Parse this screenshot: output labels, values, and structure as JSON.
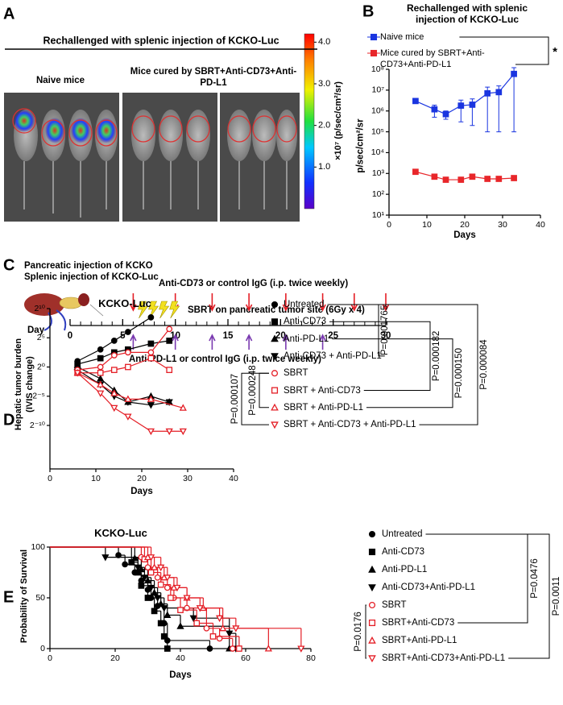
{
  "panel_labels": [
    "A",
    "B",
    "C",
    "D",
    "E"
  ],
  "panel_a": {
    "title": "Rechallenged with splenic injection of KCKO-Luc",
    "naive_label": "Naive mice",
    "cured_label": "Mice cured by SBRT+Anti-CD73+Anti-PD-L1",
    "colorbar": {
      "lim": [
        0,
        4.2
      ],
      "ticks": [
        {
          "value": 4,
          "label": "4.0"
        },
        {
          "value": 3,
          "label": "3.0"
        },
        {
          "value": 2,
          "label": "2.0"
        },
        {
          "value": 1,
          "label": "1.0"
        }
      ],
      "label": "×10⁷ (p/sec/cm²/sr)"
    }
  },
  "panel_c": {
    "lines": [
      "Pancreatic injection of KCKO",
      "Splenic injection of KCKO-Luc"
    ],
    "anti_cd73_label": "Anti-CD73 or control IgG (i.p. twice weekly)",
    "sbrt_label": "SBRT on pancreatic tumor site (6Gy x 4)",
    "anti_pdl1_label": "Anti-PD-L1 or control IgG (i.p. twice weekly)",
    "axis_label": "Day",
    "lim": [
      0,
      30
    ],
    "ticks": [
      0,
      5,
      10,
      15,
      20,
      25,
      30
    ],
    "anti_cd73_days": [
      6,
      10,
      13.5,
      17,
      20.5,
      24,
      27,
      30
    ],
    "anti_pdl1_days": [
      6,
      10,
      13.5,
      17,
      20.5,
      24
    ],
    "sbrt_days": [
      7,
      8,
      9,
      10
    ]
  },
  "chart_data": [
    {
      "type": "line",
      "title": "Rechallenged with splenic injection of KCKO-Luc",
      "y_label": "p/sec/cm²/sr",
      "x_label": "Days",
      "log_y": true,
      "xlim": [
        0,
        40
      ],
      "xticks": [
        0,
        10,
        20,
        30,
        40
      ],
      "ylim": [
        10,
        100000000
      ],
      "yticks": [
        {
          "value": 10,
          "label": "10¹"
        },
        {
          "value": 100,
          "label": "10²"
        },
        {
          "value": 1000,
          "label": "10³"
        },
        {
          "value": 10000,
          "label": "10⁴"
        },
        {
          "value": 100000,
          "label": "10⁵"
        },
        {
          "value": 1000000,
          "label": "10⁶"
        },
        {
          "value": 10000000,
          "label": "10⁷"
        },
        {
          "value": 100000000,
          "label": "10⁸"
        }
      ],
      "annotations": [
        "*"
      ],
      "series": [
        {
          "name": "Naive mice",
          "color": "#1a35e0",
          "marker": "square",
          "filled": true,
          "x": [
            7,
            12,
            15,
            19,
            22,
            26,
            29,
            33
          ],
          "values": [
            3000000,
            1200000,
            700000,
            1800000,
            2000000,
            7000000,
            8000000,
            60000000
          ],
          "errors": [
            500000,
            700000,
            300000,
            1500000,
            1800000,
            6900000,
            7900000,
            59900000
          ]
        },
        {
          "name": "Mice cured by SBRT+Anti-CD73+Anti-PD-L1",
          "color": "#e8262a",
          "marker": "square",
          "filled": true,
          "x": [
            7,
            12,
            15,
            19,
            22,
            26,
            29,
            33
          ],
          "values": [
            1200,
            700,
            500,
            500,
            700,
            550,
            550,
            600
          ]
        }
      ]
    },
    {
      "type": "line",
      "title": "KCKO-Luc",
      "y_label": "Hepatic tumor burden (IVIS change)",
      "x_label": "Days",
      "log_y": true,
      "xlim": [
        0,
        40
      ],
      "xticks": [
        0,
        10,
        20,
        30,
        40
      ],
      "ylim": [
        5.6e-06,
        1024
      ],
      "yticks": [
        {
          "value": 1024,
          "label": "2¹⁰"
        },
        {
          "value": 32,
          "label": "2⁵"
        },
        {
          "value": 1,
          "label": "2⁰"
        },
        {
          "value": 0.03125,
          "label": "2⁻⁵"
        },
        {
          "value": 0.0009765625,
          "label": "2⁻¹⁰"
        }
      ],
      "annotations": [
        "P=0.001765",
        "P=0.000182",
        "P=0.000150",
        "P=0.000084",
        "P=0.000107",
        "P=0.000248"
      ],
      "series": [
        {
          "name": "Untreated",
          "color": "#000000",
          "marker": "circle",
          "filled": true,
          "x": [
            6,
            11,
            14,
            17,
            22
          ],
          "values": [
            2,
            8,
            22.6,
            64,
            362
          ]
        },
        {
          "name": "Anti-CD73",
          "color": "#000000",
          "marker": "square",
          "filled": true,
          "x": [
            6,
            11,
            14,
            17,
            22,
            26
          ],
          "values": [
            1.41,
            2.83,
            5.66,
            8,
            16,
            22.6
          ]
        },
        {
          "name": "Anti-PD-L1",
          "color": "#000000",
          "marker": "triangle-up",
          "filled": true,
          "x": [
            6,
            11,
            14,
            17,
            22,
            26
          ],
          "values": [
            1,
            0.25,
            0.0625,
            0.0156,
            0.0313,
            0.0156
          ]
        },
        {
          "name": "Anti-CD73 + Anti-PD-L1",
          "color": "#000000",
          "marker": "triangle-down",
          "filled": true,
          "x": [
            6,
            11,
            14,
            17,
            22,
            26
          ],
          "values": [
            0.707,
            0.125,
            0.0313,
            0.0156,
            0.011,
            0.0156
          ]
        },
        {
          "name": "SBRT",
          "color": "#e41e26",
          "marker": "circle",
          "filled": false,
          "x": [
            6,
            11,
            14,
            17,
            22,
            26
          ],
          "values": [
            0.707,
            1,
            4,
            5.66,
            5.66,
            90.5
          ]
        },
        {
          "name": "SBRT + Anti-CD73",
          "color": "#e41e26",
          "marker": "square",
          "filled": false,
          "x": [
            6,
            11,
            14,
            17,
            22,
            26
          ],
          "values": [
            0.5,
            0.5,
            0.707,
            1,
            2.83,
            0.707
          ]
        },
        {
          "name": "SBRT + Anti-PD-L1",
          "color": "#e41e26",
          "marker": "triangle-up",
          "filled": false,
          "x": [
            6,
            11,
            14,
            17,
            22,
            29
          ],
          "values": [
            0.5,
            0.125,
            0.0442,
            0.0221,
            0.0221,
            0.0078
          ]
        },
        {
          "name": "SBRT + Anti-CD73 + Anti-PD-L1",
          "color": "#e41e26",
          "marker": "triangle-down",
          "filled": false,
          "x": [
            6,
            11,
            14,
            17,
            22,
            26,
            29
          ],
          "values": [
            0.5,
            0.0442,
            0.0078,
            0.0028,
            0.00049,
            0.00049,
            0.00049
          ]
        }
      ]
    },
    {
      "type": "survival",
      "title": "KCKO-Luc",
      "y_label": "Probability of Survival",
      "x_label": "Days",
      "xlim": [
        0,
        80
      ],
      "xticks": [
        0,
        20,
        40,
        60,
        80
      ],
      "ylim": [
        0,
        100
      ],
      "yticks": [
        0,
        50,
        100
      ],
      "annotations": [
        "P=0.0476",
        "P=0.0011",
        "P=0.0176"
      ],
      "series": [
        {
          "name": "Untreated",
          "color": "#000000",
          "marker": "circle",
          "filled": true,
          "x": [
            0,
            21,
            23,
            26,
            28,
            30,
            31,
            33,
            35,
            36,
            49
          ],
          "values": [
            100,
            92,
            83,
            75,
            67,
            58,
            50,
            42,
            25,
            8,
            0
          ]
        },
        {
          "name": "Anti-CD73",
          "color": "#000000",
          "marker": "square",
          "filled": true,
          "x": [
            0,
            25,
            27,
            28,
            30,
            32,
            34,
            35,
            36
          ],
          "values": [
            100,
            85,
            75,
            62,
            50,
            37,
            25,
            12,
            0
          ]
        },
        {
          "name": "Anti-PD-L1",
          "color": "#000000",
          "marker": "triangle-up",
          "filled": true,
          "x": [
            0,
            26,
            28,
            30,
            32,
            34,
            36,
            40,
            55
          ],
          "values": [
            100,
            89,
            78,
            67,
            55,
            44,
            33,
            22,
            0
          ]
        },
        {
          "name": "Anti-CD73+Anti-PD-L1",
          "color": "#000000",
          "marker": "triangle-down",
          "filled": true,
          "x": [
            0,
            17,
            27,
            29,
            31,
            33,
            35,
            44,
            55,
            57
          ],
          "values": [
            100,
            90,
            80,
            70,
            60,
            50,
            40,
            30,
            15,
            0
          ]
        },
        {
          "name": "SBRT",
          "color": "#e41e26",
          "marker": "circle",
          "filled": false,
          "x": [
            0,
            28,
            30,
            33,
            36,
            38,
            42,
            48,
            52,
            56
          ],
          "values": [
            100,
            90,
            80,
            70,
            60,
            50,
            40,
            20,
            10,
            0
          ]
        },
        {
          "name": "SBRT+Anti-CD73",
          "color": "#e41e26",
          "marker": "square",
          "filled": false,
          "x": [
            0,
            29,
            31,
            34,
            37,
            40,
            45,
            50,
            58
          ],
          "values": [
            100,
            88,
            75,
            63,
            50,
            38,
            25,
            12,
            0
          ]
        },
        {
          "name": "SBRT+Anti-PD-L1",
          "color": "#e41e26",
          "marker": "triangle-up",
          "filled": false,
          "x": [
            0,
            30,
            32,
            35,
            38,
            42,
            47,
            53,
            67
          ],
          "values": [
            100,
            90,
            80,
            70,
            60,
            50,
            40,
            20,
            0
          ]
        },
        {
          "name": "SBRT+Anti-CD73+Anti-PD-L1",
          "color": "#e41e26",
          "marker": "triangle-down",
          "filled": false,
          "x": [
            0,
            31,
            34,
            36,
            39,
            42,
            46,
            52,
            57,
            77
          ],
          "values": [
            100,
            90,
            80,
            70,
            60,
            50,
            40,
            30,
            20,
            0
          ]
        }
      ]
    }
  ]
}
